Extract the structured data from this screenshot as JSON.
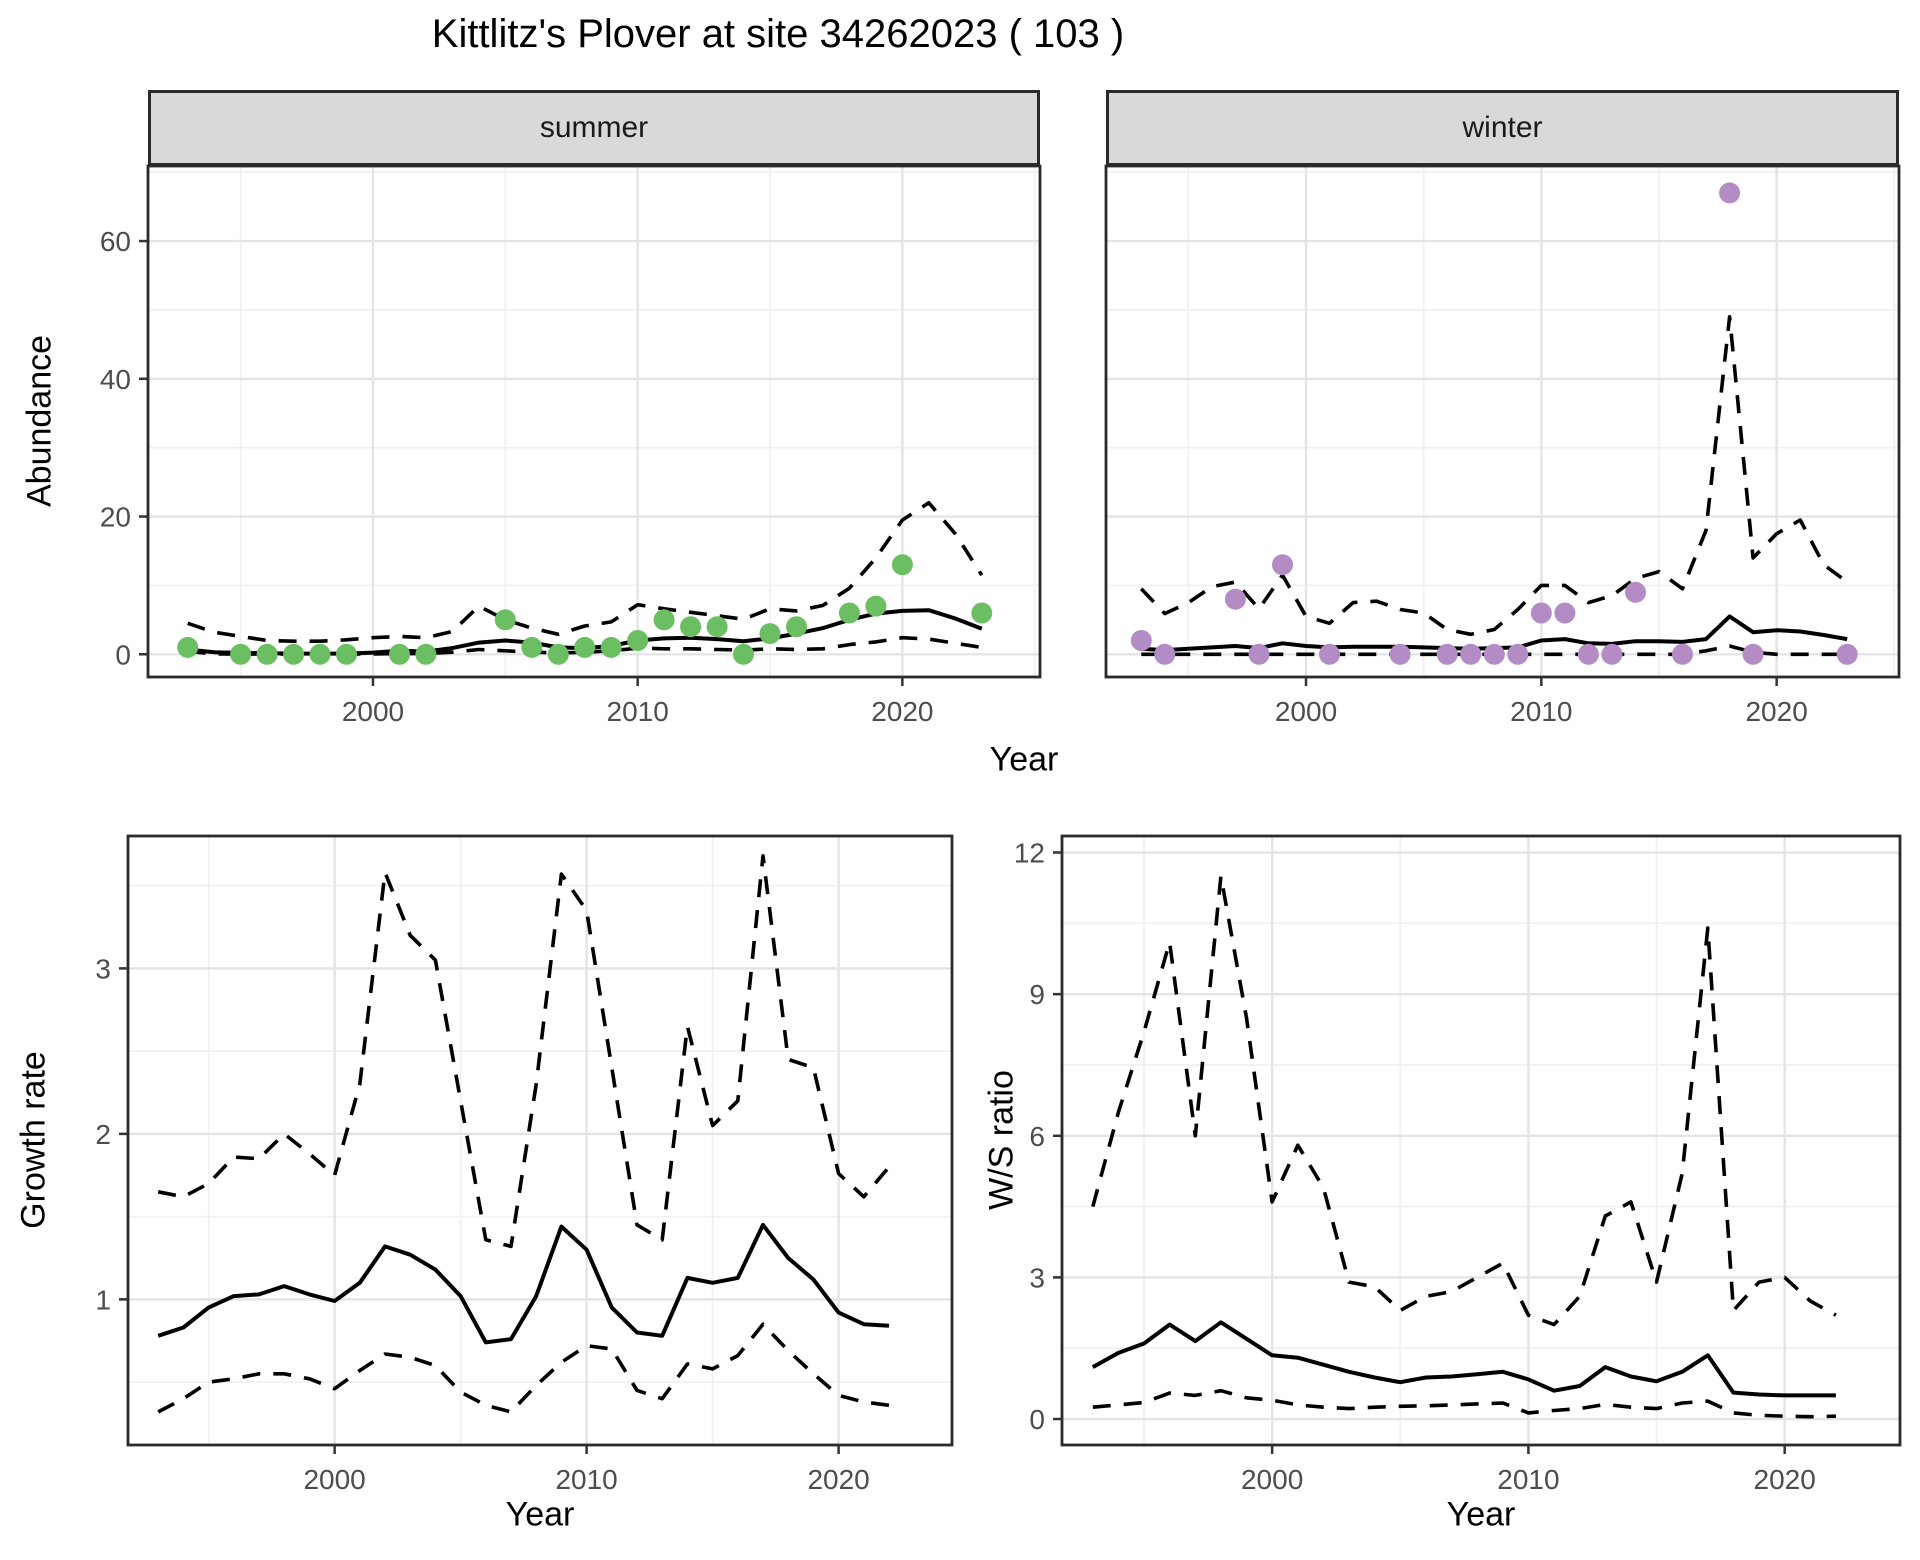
{
  "title": "Kittlitz's Plover at site 34262023 ( 103 )",
  "facets": [
    {
      "id": "summer",
      "label": "summer"
    },
    {
      "id": "winter",
      "label": "winter"
    }
  ],
  "axis_titles": {
    "abundance": "Abundance",
    "year_top": "Year",
    "growth": "Growth rate",
    "ws": "W/S ratio",
    "year_bottom_left": "Year",
    "year_bottom_right": "Year"
  },
  "colors": {
    "summer_points": "#6CBE63",
    "winter_points": "#B48CC5",
    "line": "#000000",
    "grid_major": "#E4E4E4",
    "grid_minor": "#F1F1F1",
    "panel_border": "#2A2A2A",
    "strip_bg": "#D9D9D9",
    "tick_label": "#4D4D4D"
  },
  "chart_data": [
    {
      "id": "abundance-summer",
      "panel": "summer",
      "type": "line+scatter",
      "facet_label": "summer",
      "xlabel": "Year",
      "ylabel": "Abundance",
      "years": [
        1993,
        1994,
        1995,
        1996,
        1997,
        1998,
        1999,
        2000,
        2001,
        2002,
        2003,
        2004,
        2005,
        2006,
        2007,
        2008,
        2009,
        2010,
        2011,
        2012,
        2013,
        2014,
        2015,
        2016,
        2017,
        2018,
        2019,
        2020,
        2021,
        2022,
        2023
      ],
      "series": [
        {
          "name": "fit",
          "style": "solid",
          "values": [
            0.7,
            0.3,
            0.2,
            0.15,
            0.1,
            0.1,
            0.1,
            0.25,
            0.5,
            0.4,
            0.9,
            1.7,
            2.0,
            1.7,
            1.0,
            0.9,
            1.2,
            2.0,
            2.3,
            2.4,
            2.2,
            1.9,
            2.3,
            3.0,
            3.8,
            5.0,
            5.9,
            6.3,
            6.4,
            5.2,
            3.7
          ]
        },
        {
          "name": "upper_ci",
          "style": "dashed",
          "values": [
            4.5,
            3.2,
            2.6,
            2.0,
            1.9,
            1.9,
            2.1,
            2.4,
            2.6,
            2.4,
            3.3,
            7.0,
            5.0,
            3.8,
            2.9,
            4.1,
            4.7,
            7.2,
            6.6,
            6.1,
            5.6,
            5.1,
            6.6,
            6.3,
            7.1,
            9.6,
            14.0,
            19.5,
            22.0,
            17.5,
            11.5
          ]
        },
        {
          "name": "lower_ci",
          "style": "dashed",
          "values": [
            0.4,
            0.05,
            0.02,
            0.02,
            0.02,
            0.02,
            0.02,
            0.05,
            0.1,
            0.1,
            0.3,
            0.7,
            0.5,
            0.3,
            0.2,
            0.3,
            0.5,
            0.9,
            0.8,
            0.8,
            0.7,
            0.6,
            0.8,
            0.7,
            0.8,
            1.4,
            1.8,
            2.4,
            2.2,
            1.6,
            1.0
          ]
        }
      ],
      "observations": [
        [
          1993,
          1
        ],
        [
          1995,
          0
        ],
        [
          1996,
          0
        ],
        [
          1997,
          0
        ],
        [
          1998,
          0
        ],
        [
          1999,
          0
        ],
        [
          2001,
          0
        ],
        [
          2002,
          0
        ],
        [
          2005,
          5
        ],
        [
          2006,
          1
        ],
        [
          2007,
          0
        ],
        [
          2008,
          1
        ],
        [
          2009,
          1
        ],
        [
          2010,
          2
        ],
        [
          2011,
          5
        ],
        [
          2012,
          4
        ],
        [
          2013,
          4
        ],
        [
          2014,
          0
        ],
        [
          2015,
          3
        ],
        [
          2016,
          4
        ],
        [
          2018,
          6
        ],
        [
          2019,
          7
        ],
        [
          2020,
          13
        ],
        [
          2023,
          6
        ]
      ],
      "point_color": "#6CBE63",
      "xlim": [
        1991.5,
        2025.2
      ],
      "ylim": [
        -3.3,
        70.9
      ],
      "xticks": [
        2000,
        2010,
        2020
      ],
      "xminor": [
        1995,
        2005,
        2015,
        2025
      ],
      "yticks": [
        0,
        20,
        40,
        60
      ],
      "yminor": [
        10,
        30,
        50,
        70
      ],
      "show_ytick_labels": true,
      "grid": true
    },
    {
      "id": "abundance-winter",
      "panel": "winter",
      "type": "line+scatter",
      "facet_label": "winter",
      "xlabel": "Year",
      "ylabel": "Abundance",
      "years": [
        1993,
        1994,
        1995,
        1996,
        1997,
        1998,
        1999,
        2000,
        2001,
        2002,
        2003,
        2004,
        2005,
        2006,
        2007,
        2008,
        2009,
        2010,
        2011,
        2012,
        2013,
        2014,
        2015,
        2016,
        2017,
        2018,
        2019,
        2020,
        2021,
        2022,
        2023
      ],
      "series": [
        {
          "name": "fit",
          "style": "solid",
          "values": [
            0.8,
            0.6,
            0.8,
            1.0,
            1.2,
            0.9,
            1.6,
            1.2,
            1.0,
            1.1,
            1.1,
            1.1,
            1.0,
            0.9,
            0.8,
            0.9,
            1.0,
            2.0,
            2.2,
            1.6,
            1.5,
            1.9,
            1.9,
            1.8,
            2.2,
            5.5,
            3.2,
            3.5,
            3.3,
            2.8,
            2.2
          ]
        },
        {
          "name": "upper_ci",
          "style": "dashed",
          "values": [
            9.5,
            5.9,
            7.5,
            9.8,
            10.5,
            6.6,
            11.5,
            5.5,
            4.5,
            7.5,
            7.7,
            6.5,
            6.0,
            3.6,
            2.9,
            3.6,
            6.5,
            10.0,
            10.0,
            7.5,
            8.5,
            11.0,
            12.0,
            9.5,
            18.0,
            49.0,
            14.0,
            17.5,
            19.5,
            13.0,
            10.5
          ]
        },
        {
          "name": "lower_ci",
          "style": "dashed",
          "values": [
            0,
            0,
            0,
            0,
            0,
            0,
            0,
            0,
            0,
            0,
            0,
            0,
            0,
            0,
            0,
            0,
            0,
            0,
            0,
            0,
            0,
            0,
            0,
            0,
            0.5,
            1.2,
            0.3,
            0,
            0,
            0,
            0
          ]
        }
      ],
      "observations": [
        [
          1993,
          2
        ],
        [
          1994,
          0
        ],
        [
          1997,
          8
        ],
        [
          1998,
          0
        ],
        [
          1999,
          13
        ],
        [
          2001,
          0
        ],
        [
          2004,
          0
        ],
        [
          2006,
          0
        ],
        [
          2007,
          0
        ],
        [
          2008,
          0
        ],
        [
          2009,
          0
        ],
        [
          2010,
          6
        ],
        [
          2011,
          6
        ],
        [
          2012,
          0
        ],
        [
          2013,
          0
        ],
        [
          2014,
          9
        ],
        [
          2016,
          0
        ],
        [
          2018,
          67
        ],
        [
          2019,
          0
        ],
        [
          2023,
          0
        ]
      ],
      "point_color": "#B48CC5",
      "xlim": [
        1991.5,
        2025.2
      ],
      "ylim": [
        -3.3,
        70.9
      ],
      "xticks": [
        2000,
        2010,
        2020
      ],
      "xminor": [
        1995,
        2005,
        2015,
        2025
      ],
      "yticks": [
        0,
        20,
        40,
        60
      ],
      "yminor": [
        10,
        30,
        50,
        70
      ],
      "show_ytick_labels": false,
      "grid": true
    },
    {
      "id": "growth-rate",
      "panel": "growth",
      "type": "line",
      "xlabel": "Year",
      "ylabel": "Growth rate",
      "years": [
        1993,
        1994,
        1995,
        1996,
        1997,
        1998,
        1999,
        2000,
        2001,
        2002,
        2003,
        2004,
        2005,
        2006,
        2007,
        2008,
        2009,
        2010,
        2011,
        2012,
        2013,
        2014,
        2015,
        2016,
        2017,
        2018,
        2019,
        2020,
        2021,
        2022
      ],
      "series": [
        {
          "name": "fit",
          "style": "solid",
          "values": [
            0.78,
            0.83,
            0.95,
            1.02,
            1.03,
            1.08,
            1.03,
            0.99,
            1.1,
            1.32,
            1.27,
            1.18,
            1.02,
            0.74,
            0.76,
            1.02,
            1.44,
            1.3,
            0.95,
            0.8,
            0.78,
            1.13,
            1.1,
            1.13,
            1.45,
            1.25,
            1.12,
            0.92,
            0.85,
            0.84
          ]
        },
        {
          "name": "upper_ci",
          "style": "dashed",
          "values": [
            1.65,
            1.62,
            1.7,
            1.86,
            1.85,
            2.0,
            1.88,
            1.75,
            2.3,
            3.58,
            3.2,
            3.05,
            2.2,
            1.36,
            1.32,
            2.3,
            3.57,
            3.35,
            2.4,
            1.45,
            1.36,
            2.65,
            2.05,
            2.2,
            3.68,
            2.45,
            2.4,
            1.76,
            1.62,
            1.8
          ]
        },
        {
          "name": "lower_ci",
          "style": "dashed",
          "values": [
            0.32,
            0.4,
            0.5,
            0.52,
            0.55,
            0.55,
            0.52,
            0.46,
            0.57,
            0.67,
            0.65,
            0.6,
            0.44,
            0.36,
            0.32,
            0.48,
            0.62,
            0.72,
            0.7,
            0.45,
            0.4,
            0.61,
            0.58,
            0.66,
            0.85,
            0.69,
            0.55,
            0.42,
            0.38,
            0.36
          ]
        }
      ],
      "observations": [],
      "point_color": "#000000",
      "xlim": [
        1991.8,
        2024.5
      ],
      "ylim": [
        0.12,
        3.8
      ],
      "xticks": [
        2000,
        2010,
        2020
      ],
      "xminor": [
        1995,
        2005,
        2015
      ],
      "yticks": [
        1,
        2,
        3
      ],
      "yminor": [
        0.5,
        1.5,
        2.5,
        3.5
      ],
      "show_ytick_labels": true,
      "grid": true
    },
    {
      "id": "ws-ratio",
      "panel": "ws",
      "type": "line",
      "xlabel": "Year",
      "ylabel": "W/S ratio",
      "years": [
        1993,
        1994,
        1995,
        1996,
        1997,
        1998,
        1999,
        2000,
        2001,
        2002,
        2003,
        2004,
        2005,
        2006,
        2007,
        2008,
        2009,
        2010,
        2011,
        2012,
        2013,
        2014,
        2015,
        2016,
        2017,
        2018,
        2019,
        2020,
        2021,
        2022
      ],
      "series": [
        {
          "name": "fit",
          "style": "solid",
          "values": [
            1.1,
            1.4,
            1.6,
            2.0,
            1.65,
            2.05,
            1.7,
            1.35,
            1.3,
            1.15,
            1.0,
            0.88,
            0.78,
            0.88,
            0.9,
            0.95,
            1.0,
            0.84,
            0.6,
            0.7,
            1.1,
            0.9,
            0.8,
            1.0,
            1.35,
            0.56,
            0.52,
            0.5,
            0.5,
            0.5
          ]
        },
        {
          "name": "upper_ci",
          "style": "dashed",
          "values": [
            4.5,
            6.5,
            8.2,
            10.1,
            6.0,
            11.5,
            8.5,
            4.6,
            5.8,
            4.9,
            2.9,
            2.8,
            2.3,
            2.6,
            2.7,
            3.0,
            3.3,
            2.2,
            2.0,
            2.6,
            4.3,
            4.6,
            2.9,
            5.2,
            10.4,
            2.3,
            2.9,
            3.0,
            2.5,
            2.2
          ]
        },
        {
          "name": "lower_ci",
          "style": "dashed",
          "values": [
            0.25,
            0.3,
            0.35,
            0.55,
            0.5,
            0.6,
            0.45,
            0.4,
            0.3,
            0.25,
            0.22,
            0.25,
            0.27,
            0.28,
            0.3,
            0.32,
            0.34,
            0.13,
            0.18,
            0.22,
            0.31,
            0.25,
            0.22,
            0.34,
            0.38,
            0.13,
            0.08,
            0.06,
            0.05,
            0.06
          ]
        }
      ],
      "observations": [],
      "point_color": "#000000",
      "xlim": [
        1991.8,
        2024.5
      ],
      "ylim": [
        -0.55,
        12.35
      ],
      "xticks": [
        2000,
        2010,
        2020
      ],
      "xminor": [
        1995,
        2005,
        2015
      ],
      "yticks": [
        0,
        3,
        6,
        9,
        12
      ],
      "yminor": [
        1.5,
        4.5,
        7.5,
        10.5
      ],
      "show_ytick_labels": true,
      "grid": true
    }
  ]
}
